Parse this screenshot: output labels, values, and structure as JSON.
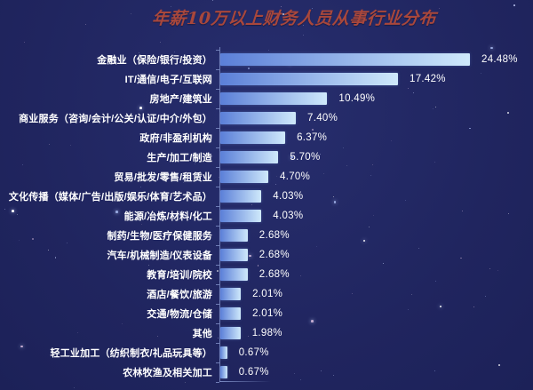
{
  "title": "年薪10万以上财务人员从事行业分布",
  "chart_data": {
    "type": "bar",
    "orientation": "horizontal",
    "title": "年薪10万以上财务人员从事行业分布",
    "categories": [
      "金融业（保险/银行/投资）",
      "IT/通信/电子/互联网",
      "房地产/建筑业",
      "商业服务（咨询/会计/公关/认证/中介/外包）",
      "政府/非盈利机构",
      "生产/加工/制造",
      "贸易/批发/零售/租赁业",
      "文化传播（媒体/广告/出版/娱乐/体育/艺术品）",
      "能源/冶炼/材料/化工",
      "制药/生物/医疗保健服务",
      "汽车/机械制造/仪表设备",
      "教育/培训/院校",
      "酒店/餐饮/旅游",
      "交通/物流/仓储",
      "其他",
      "轻工业加工（纺织制衣/礼品玩具等）",
      "农林牧渔及相关加工"
    ],
    "values": [
      24.48,
      17.42,
      10.49,
      7.4,
      6.37,
      5.7,
      4.7,
      4.03,
      4.03,
      2.68,
      2.68,
      2.68,
      2.01,
      2.01,
      1.98,
      0.67,
      0.67
    ],
    "value_labels": [
      "24.48%",
      "17.42%",
      "10.49%",
      "7.40%",
      "6.37%",
      "5.70%",
      "4.70%",
      "4.03%",
      "4.03%",
      "2.68%",
      "2.68%",
      "2.68%",
      "2.01%",
      "2.01%",
      "1.98%",
      "0.67%",
      "0.67%"
    ],
    "xlim": [
      0,
      26
    ],
    "grid": false,
    "legend": "none",
    "value_label_position": "right-of-bar"
  },
  "colors": {
    "background": "#20255f",
    "background_light": "#272e6e",
    "title": "#a8473c",
    "bar_gradient_start": "#5b7fd8",
    "bar_gradient_end": "#cfe9fb",
    "axis": "#7d8cc4",
    "category_text": "#ffffff",
    "value_text": "#ffffff"
  }
}
